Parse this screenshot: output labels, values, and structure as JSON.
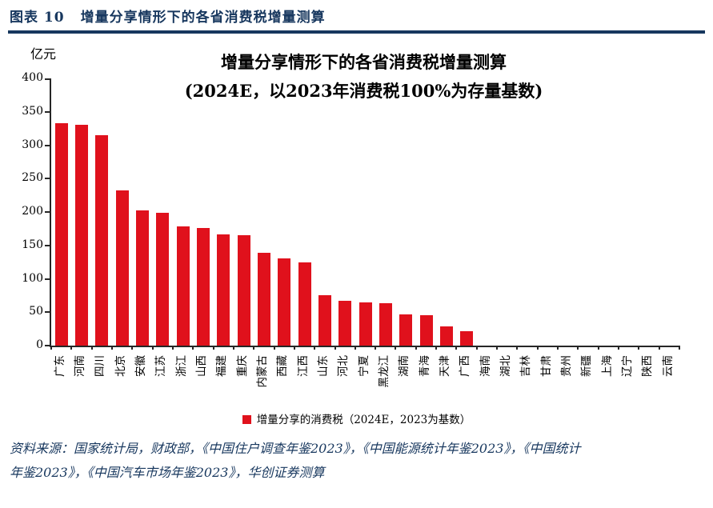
{
  "header": {
    "label": "图表 10",
    "title": "增量分享情形下的各省消费税增量测算"
  },
  "chart": {
    "unit_label": "亿元",
    "title_line1": "增量分享情形下的各省消费税增量测算",
    "title_line2": "(2024E，以2023年消费税100%为存量基数)",
    "legend_label": "增量分享的消费税（2024E，2023为基数）"
  },
  "chart_data": {
    "type": "bar",
    "title": "增量分享情形下的各省消费税增量测算(2024E，以2023年消费税100%为存量基数)",
    "xlabel": "",
    "ylabel": "亿元",
    "ylim": [
      0,
      400
    ],
    "ytick_interval": 50,
    "grid": false,
    "legend_position": "bottom",
    "series_name": "增量分享的消费税（2024E，2023为基数）",
    "bar_color": "#e0111c",
    "categories": [
      "广东",
      "河南",
      "四川",
      "北京",
      "安徽",
      "江苏",
      "浙江",
      "山西",
      "福建",
      "重庆",
      "内蒙古",
      "西藏",
      "江西",
      "山东",
      "河北",
      "宁夏",
      "黑龙江",
      "湖南",
      "青海",
      "天津",
      "广西",
      "海南",
      "湖北",
      "吉林",
      "甘肃",
      "贵州",
      "新疆",
      "上海",
      "辽宁",
      "陕西",
      "云南"
    ],
    "values": [
      333,
      330,
      315,
      232,
      202,
      199,
      179,
      176,
      166,
      165,
      139,
      130,
      125,
      75,
      67,
      65,
      63,
      47,
      46,
      29,
      21,
      0,
      0,
      0,
      0,
      0,
      0,
      0,
      0,
      0,
      0
    ]
  },
  "footer": {
    "source_line1": "资料来源：国家统计局，财政部，《中国住户调查年鉴2023》，《中国能源统计年鉴2023》，《中国统计",
    "source_line2": "年鉴2023》，《中国汽车市场年鉴2023》，华创证券测算"
  },
  "colors": {
    "navy": "#17375e",
    "red": "#e0111c",
    "axis": "#262626"
  }
}
